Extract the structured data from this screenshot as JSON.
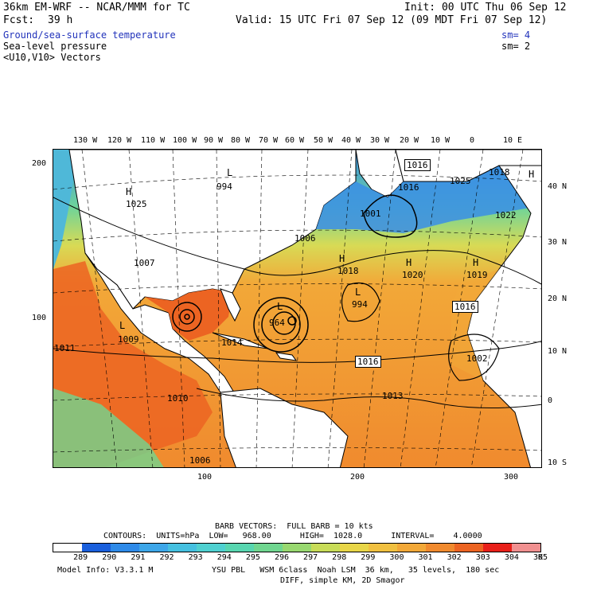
{
  "header": {
    "model": "36km EM-WRF -- NCAR/MMM for TC",
    "fcst_label": "Fcst:",
    "fcst_value": "39 h",
    "init": "Init: 00 UTC Thu 06 Sep 12",
    "valid": "Valid: 15 UTC Fri 07 Sep 12 (09 MDT Fri 07 Sep 12)",
    "field1": "Ground/sea-surface temperature",
    "field1_sm": "sm= 4",
    "field2": "Sea-level pressure",
    "field2_sm": "sm= 2",
    "field3": "<U10,V10> Vectors"
  },
  "top_lon_labels": [
    "130 W",
    "120 W",
    "110 W",
    "100 W",
    "90 W",
    "80 W",
    "70 W",
    "60 W",
    "50 W",
    "40 W",
    "30 W",
    "20 W",
    "10 W",
    "0",
    "10 E"
  ],
  "right_lat_labels": [
    "40 N",
    "30 N",
    "20 N",
    "10 N",
    "0",
    "10 S"
  ],
  "left_grid_labels": [
    "200",
    "100"
  ],
  "bottom_grid_labels": [
    "100",
    "200",
    "300"
  ],
  "pressure_labels": {
    "p994a": "994",
    "p1016a": "1016",
    "p1016b": "1016",
    "p1025": "1025",
    "p1001": "1001",
    "p1022": "1022",
    "p1025b": "1025",
    "p1006": "1006",
    "p1007": "1007",
    "p1018": "1018",
    "p1020": "1020",
    "p1019": "1019",
    "p994b": "994",
    "p964": "964",
    "p1016c": "1016",
    "p1016d": "1016",
    "p1009": "1009",
    "p1011": "1011",
    "p1002": "1002",
    "p1013": "1013",
    "p1010": "1010",
    "p1006b": "1006",
    "p1014": "1014",
    "p1018b": "1018"
  },
  "pressure_markers": {
    "H1": "H",
    "L1": "L",
    "H2": "H",
    "L2": "L",
    "L3": "L",
    "H3": "H",
    "H4": "H",
    "L4": "L",
    "H5": "H"
  },
  "footer": {
    "barb": "BARB VECTORS:  FULL BARB = 10 kts",
    "contours": "CONTOURS:  UNITS=hPa  LOW=   968.00      HIGH=  1028.0      INTERVAL=    4.0000",
    "model_info": "Model Info: V3.3.1 M",
    "physics": "YSU PBL   WSM 6class  Noah LSM  36 km,   35 levels,  180 sec",
    "diff": "DIFF, simple KM, 2D Smagor",
    "unit": "K"
  },
  "legend": {
    "labels": [
      "289",
      "290",
      "291",
      "292",
      "293",
      "294",
      "295",
      "296",
      "297",
      "298",
      "299",
      "300",
      "301",
      "302",
      "303",
      "304",
      "305"
    ],
    "colors": [
      "#ffffff",
      "#1a5fdc",
      "#2e8ae8",
      "#3da6e8",
      "#45c0e0",
      "#4fd0d0",
      "#58d6b0",
      "#70d690",
      "#98d870",
      "#c8dc58",
      "#e8d648",
      "#f0c040",
      "#f2a838",
      "#f08a2e",
      "#ec6422",
      "#e8201a",
      "#f09090"
    ]
  }
}
